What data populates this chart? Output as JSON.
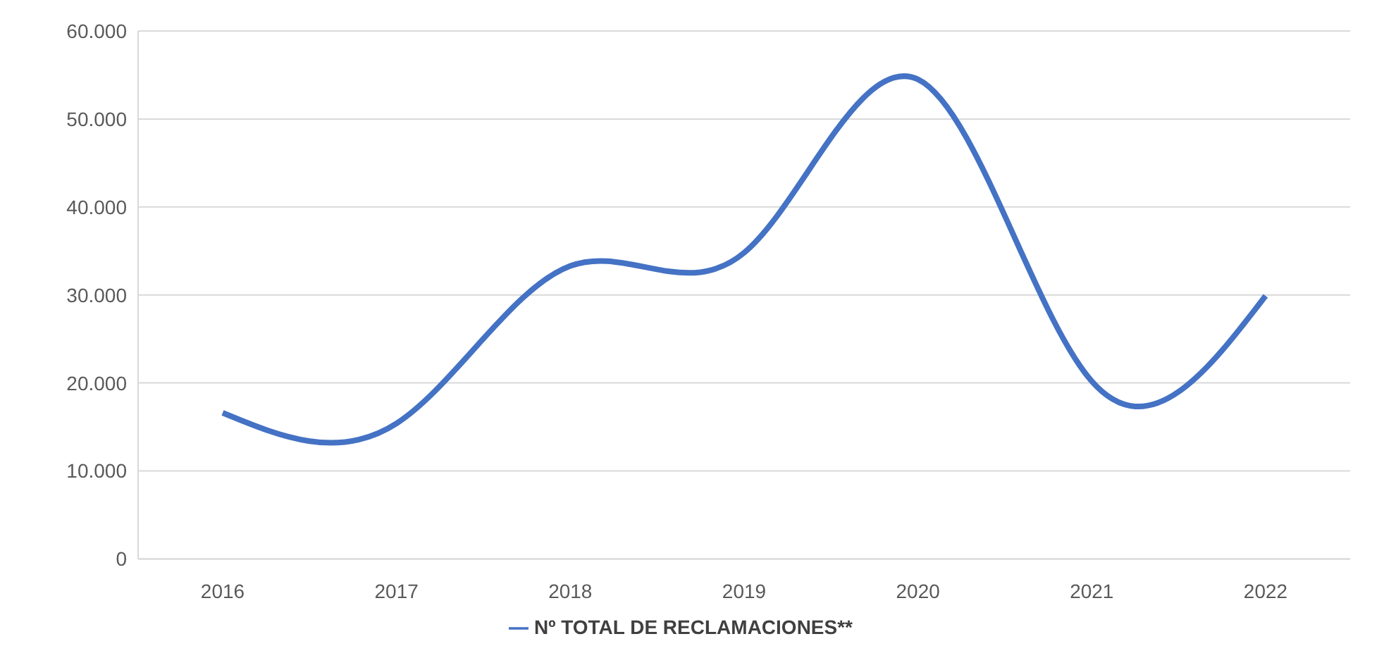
{
  "chart_data": {
    "type": "line",
    "categories": [
      "2016",
      "2017",
      "2018",
      "2019",
      "2020",
      "2021",
      "2022"
    ],
    "series": [
      {
        "name": "Nº TOTAL DE RECLAMACIONES**",
        "color": "#4472c4",
        "values": [
          16600,
          15400,
          33300,
          34800,
          54500,
          20200,
          29900
        ]
      }
    ],
    "ylim": [
      0,
      60000
    ],
    "yticks": [
      {
        "value": 0,
        "label": "0"
      },
      {
        "value": 10000,
        "label": "10.000"
      },
      {
        "value": 20000,
        "label": "20.000"
      },
      {
        "value": 30000,
        "label": "30.000"
      },
      {
        "value": 40000,
        "label": "40.000"
      },
      {
        "value": 50000,
        "label": "50.000"
      },
      {
        "value": 60000,
        "label": "60.000"
      }
    ],
    "grid": "y",
    "legend": "bottom",
    "marker": "none",
    "line_style": "solid"
  }
}
